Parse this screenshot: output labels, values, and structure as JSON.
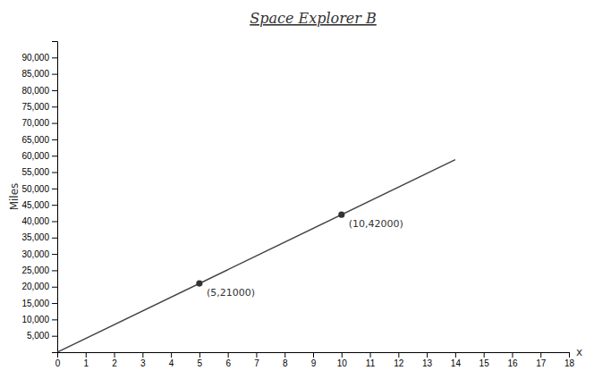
{
  "chart_data": {
    "type": "line",
    "title": "Space Explorer B",
    "x_label": "x",
    "y_label": "Miles",
    "series": [
      {
        "type": "line",
        "color": "#444444",
        "x": [
          0,
          14
        ],
        "values": [
          0,
          58800
        ]
      },
      {
        "type": "scatter",
        "color": "#333333",
        "marker": "circle",
        "x": [
          5,
          10
        ],
        "values": [
          21000,
          42000
        ]
      }
    ],
    "annotations": [
      {
        "text": "(5,21000)",
        "x": 5,
        "y": 21000
      },
      {
        "text": "(10,42000)",
        "x": 10,
        "y": 42000
      }
    ],
    "xlim": [
      0,
      18
    ],
    "xticks": [
      0,
      1,
      2,
      3,
      4,
      5,
      6,
      7,
      8,
      9,
      10,
      11,
      12,
      13,
      14,
      15,
      16,
      17,
      18
    ],
    "ylim": [
      0,
      95000
    ],
    "yticks": [
      {
        "value": 5000,
        "label": "5,000"
      },
      {
        "value": 10000,
        "label": "10,000"
      },
      {
        "value": 15000,
        "label": "15,000"
      },
      {
        "value": 20000,
        "label": "20,000"
      },
      {
        "value": 25000,
        "label": "25,000"
      },
      {
        "value": 30000,
        "label": "30,000"
      },
      {
        "value": 35000,
        "label": "35,000"
      },
      {
        "value": 40000,
        "label": "40,000"
      },
      {
        "value": 45000,
        "label": "45,000"
      },
      {
        "value": 50000,
        "label": "50,000"
      },
      {
        "value": 55000,
        "label": "55,000"
      },
      {
        "value": 60000,
        "label": "60,000"
      },
      {
        "value": 65000,
        "label": "65,000"
      },
      {
        "value": 70000,
        "label": "70,000"
      },
      {
        "value": 75000,
        "label": "75,000"
      },
      {
        "value": 80000,
        "label": "80,000"
      },
      {
        "value": 85000,
        "label": "85,000"
      },
      {
        "value": 90000,
        "label": "90,000"
      }
    ],
    "grid": false
  }
}
